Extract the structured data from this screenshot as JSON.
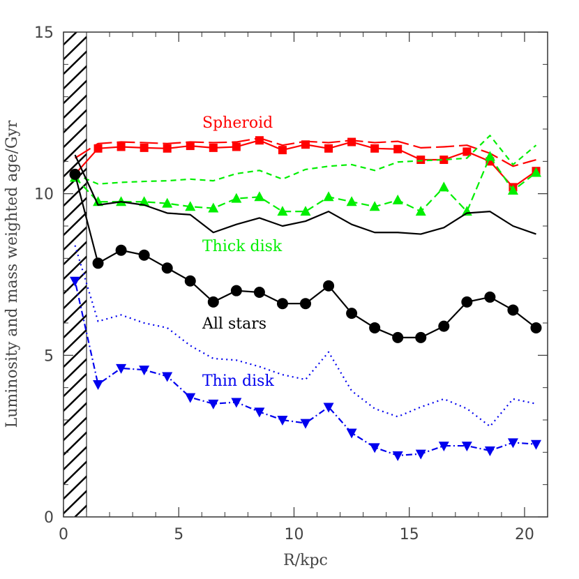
{
  "chart_data": {
    "type": "line",
    "xlabel": "R/kpc",
    "ylabel": "Luminosity and mass weighted age/Gyr",
    "xlim": [
      0,
      21
    ],
    "ylim": [
      0,
      15
    ],
    "x_ticks": [
      0,
      5,
      10,
      15,
      20
    ],
    "y_ticks": [
      0,
      5,
      10,
      15
    ],
    "x_tick_labels": [
      "0",
      "5",
      "10",
      "15",
      "20"
    ],
    "y_tick_labels": [
      "0",
      "5",
      "10",
      "15"
    ],
    "x_minor_step": 1,
    "y_minor_step": 1,
    "hatched_region": [
      0,
      1
    ],
    "grid": false,
    "x": [
      0.5,
      1.5,
      2.5,
      3.5,
      4.5,
      5.5,
      6.5,
      7.5,
      8.5,
      9.5,
      10.5,
      11.5,
      12.5,
      13.5,
      14.5,
      15.5,
      16.5,
      17.5,
      18.5,
      19.5,
      20.5
    ],
    "series": [
      {
        "component": "spheroid",
        "color": "#ff0000",
        "label": "Spheroid",
        "marked": {
          "style": "solid",
          "marker": "square",
          "values": [
            10.6,
            11.4,
            11.45,
            11.42,
            11.4,
            11.48,
            11.42,
            11.45,
            11.65,
            11.35,
            11.52,
            11.4,
            11.6,
            11.4,
            11.38,
            11.05,
            11.05,
            11.3,
            11.0,
            10.2,
            10.7
          ]
        },
        "unmarked": {
          "style": "longdash",
          "values": [
            11.1,
            11.55,
            11.6,
            11.58,
            11.55,
            11.6,
            11.58,
            11.6,
            11.72,
            11.5,
            11.62,
            11.58,
            11.65,
            11.58,
            11.62,
            11.42,
            11.45,
            11.5,
            11.25,
            10.85,
            11.05
          ]
        }
      },
      {
        "component": "thick disk",
        "color": "#00ee00",
        "label": "Thick disk",
        "marked": {
          "style": "dashed",
          "marker": "triangle-up",
          "values": [
            10.5,
            9.75,
            9.75,
            9.75,
            9.7,
            9.6,
            9.55,
            9.85,
            9.9,
            9.45,
            9.45,
            9.9,
            9.75,
            9.6,
            9.8,
            9.45,
            10.2,
            9.45,
            11.15,
            10.1,
            10.65
          ]
        },
        "unmarked": {
          "style": "shortdash",
          "values": [
            10.6,
            10.3,
            10.35,
            10.38,
            10.4,
            10.45,
            10.4,
            10.62,
            10.72,
            10.45,
            10.75,
            10.85,
            10.9,
            10.72,
            10.98,
            11.02,
            11.05,
            11.1,
            11.8,
            10.9,
            11.5
          ]
        }
      },
      {
        "component": "all stars",
        "color": "#000000",
        "label": "All stars",
        "marked": {
          "style": "solid",
          "marker": "circle",
          "values": [
            10.6,
            7.85,
            8.25,
            8.1,
            7.7,
            7.3,
            6.65,
            7.0,
            6.95,
            6.6,
            6.6,
            7.15,
            6.3,
            5.85,
            5.55,
            5.55,
            5.9,
            6.65,
            6.8,
            6.4,
            5.85
          ]
        },
        "unmarked": {
          "style": "solid",
          "values": [
            11.2,
            9.65,
            9.75,
            9.65,
            9.4,
            9.35,
            8.8,
            9.05,
            9.25,
            9.0,
            9.15,
            9.45,
            9.05,
            8.8,
            8.8,
            8.75,
            8.95,
            9.4,
            9.45,
            9.0,
            8.75
          ]
        }
      },
      {
        "component": "thin disk",
        "color": "#0000ee",
        "label": "Thin disk",
        "marked": {
          "style": "dotdash",
          "marker": "triangle-down",
          "values": [
            7.3,
            4.1,
            4.6,
            4.55,
            4.35,
            3.7,
            3.5,
            3.55,
            3.25,
            3.0,
            2.9,
            3.4,
            2.6,
            2.15,
            1.9,
            1.95,
            2.2,
            2.2,
            2.05,
            2.3,
            2.25
          ]
        },
        "unmarked": {
          "style": "dotted",
          "values": [
            8.4,
            6.05,
            6.25,
            6.0,
            5.85,
            5.3,
            4.9,
            4.85,
            4.65,
            4.4,
            4.25,
            5.1,
            3.9,
            3.35,
            3.1,
            3.4,
            3.65,
            3.35,
            2.8,
            3.65,
            3.5
          ]
        }
      }
    ]
  }
}
